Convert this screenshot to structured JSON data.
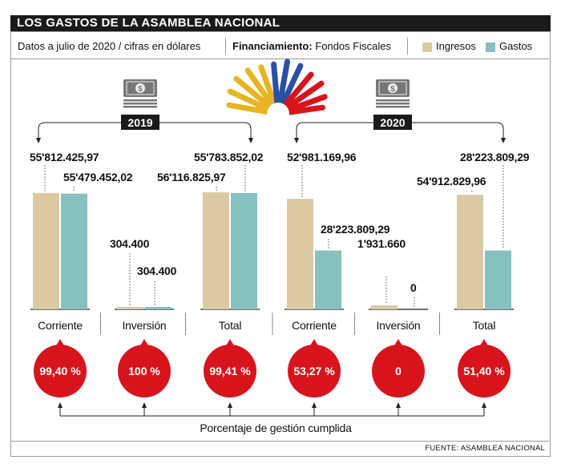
{
  "header": {
    "title": "LOS GASTOS DE LA ASAMBLEA NACIONAL",
    "note": "Datos a julio de 2020 / cifras en dólares",
    "financing_label": "Financiamiento:",
    "financing_value": " Fondos Fiscales"
  },
  "colors": {
    "ingresos": "#dbc9a2",
    "gastos": "#86c1c0",
    "circle": "#d7141c",
    "title_bg": "#1a1a1a"
  },
  "icons": [
    "money-stack-icon",
    "sun-rays-emblem-icon"
  ],
  "source": "FUENTE: ASAMBLEA NACIONAL",
  "footer_label": "Porcentaje de gestión cumplida",
  "chart_data": {
    "type": "bar",
    "title": "LOS GASTOS DE LA ASAMBLEA NACIONAL",
    "legend": {
      "position": "top-right",
      "entries": [
        "Ingresos",
        "Gastos"
      ]
    },
    "unit": "dólares",
    "groups": [
      {
        "year": "2019",
        "categories": [
          "Corriente",
          "Inversión",
          "Total"
        ],
        "series": [
          {
            "name": "Ingresos",
            "values": [
              55812425.97,
              304400,
              56116825.97
            ],
            "labels": [
              "55'812.425,97",
              "304.400",
              "56'116.825,97"
            ]
          },
          {
            "name": "Gastos",
            "values": [
              55479452.02,
              304400,
              55783852.02
            ],
            "labels": [
              "55'479.452,02",
              "304.400",
              "55'783.852,02"
            ]
          }
        ],
        "percentages": [
          "99,40 %",
          "100 %",
          "99,41 %"
        ]
      },
      {
        "year": "2020",
        "categories": [
          "Corriente",
          "Inversión",
          "Total"
        ],
        "series": [
          {
            "name": "Ingresos",
            "values": [
              52981169.96,
              1931660,
              54912829.96
            ],
            "labels": [
              "52'981.169,96",
              "1'931.660",
              "54'912.829,96"
            ]
          },
          {
            "name": "Gastos",
            "values": [
              28223809.29,
              0,
              28223809.29
            ],
            "labels": [
              "28'223.809,29",
              "0",
              "28'223.809,29"
            ]
          }
        ],
        "percentages": [
          "53,27 %",
          "0",
          "51,40 %"
        ]
      }
    ]
  }
}
